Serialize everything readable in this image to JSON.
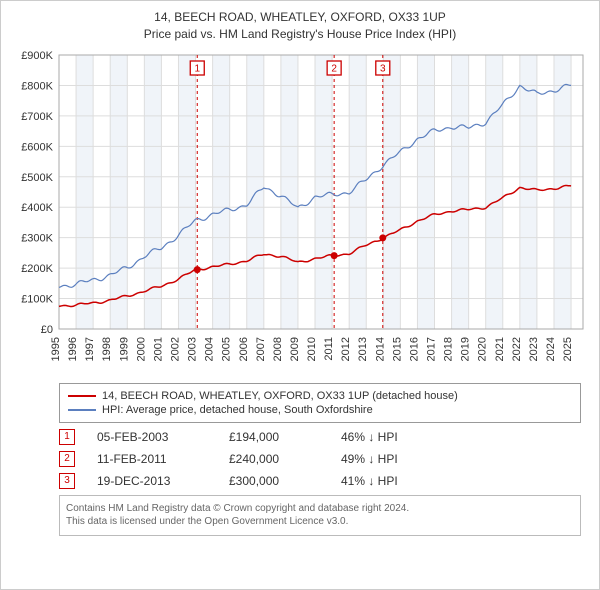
{
  "title_line1": "14, BEECH ROAD, WHEATLEY, OXFORD, OX33 1UP",
  "title_line2": "Price paid vs. HM Land Registry's House Price Index (HPI)",
  "chart": {
    "type": "line",
    "background_color": "#ffffff",
    "plot_bg": "#ffffff",
    "grid_color": "#dddddd",
    "border_color": "#aaaaaa",
    "shaded_band_color": "#f0f4f9",
    "xlim": [
      1995,
      2025.7
    ],
    "ylim": [
      0,
      900000
    ],
    "ytick_step": 100000,
    "yticks": [
      "£0",
      "£100K",
      "£200K",
      "£300K",
      "£400K",
      "£500K",
      "£600K",
      "£700K",
      "£800K",
      "£900K"
    ],
    "xticks": [
      1995,
      1996,
      1997,
      1998,
      1999,
      2000,
      2001,
      2002,
      2003,
      2004,
      2005,
      2006,
      2007,
      2008,
      2009,
      2010,
      2011,
      2012,
      2013,
      2014,
      2015,
      2016,
      2017,
      2018,
      2019,
      2020,
      2021,
      2022,
      2023,
      2024,
      2025
    ],
    "label_fontsize": 11,
    "series": [
      {
        "name": "14, BEECH ROAD, WHEATLEY, OXFORD, OX33 1UP (detached house)",
        "color": "#cc0000",
        "line_width": 1.5,
        "data": [
          [
            1995,
            76000
          ],
          [
            1996,
            79000
          ],
          [
            1997,
            85000
          ],
          [
            1998,
            95000
          ],
          [
            1999,
            108000
          ],
          [
            2000,
            125000
          ],
          [
            2001,
            140000
          ],
          [
            2002,
            165000
          ],
          [
            2003,
            194000
          ],
          [
            2004,
            205000
          ],
          [
            2005,
            212000
          ],
          [
            2006,
            225000
          ],
          [
            2007,
            245000
          ],
          [
            2008,
            240000
          ],
          [
            2009,
            218000
          ],
          [
            2010,
            232000
          ],
          [
            2011,
            240000
          ],
          [
            2012,
            248000
          ],
          [
            2013,
            275000
          ],
          [
            2014,
            300000
          ],
          [
            2015,
            325000
          ],
          [
            2016,
            355000
          ],
          [
            2017,
            375000
          ],
          [
            2018,
            388000
          ],
          [
            2019,
            392000
          ],
          [
            2020,
            400000
          ],
          [
            2021,
            430000
          ],
          [
            2022,
            465000
          ],
          [
            2023,
            455000
          ],
          [
            2024,
            462000
          ],
          [
            2025,
            470000
          ]
        ]
      },
      {
        "name": "HPI: Average price, detached house, South Oxfordshire",
        "color": "#5b7fbf",
        "line_width": 1.2,
        "data": [
          [
            1995,
            140000
          ],
          [
            1996,
            148000
          ],
          [
            1997,
            160000
          ],
          [
            1998,
            178000
          ],
          [
            1999,
            200000
          ],
          [
            2000,
            240000
          ],
          [
            2001,
            265000
          ],
          [
            2002,
            310000
          ],
          [
            2003,
            355000
          ],
          [
            2004,
            378000
          ],
          [
            2005,
            390000
          ],
          [
            2006,
            410000
          ],
          [
            2007,
            465000
          ],
          [
            2008,
            440000
          ],
          [
            2009,
            395000
          ],
          [
            2010,
            435000
          ],
          [
            2011,
            440000
          ],
          [
            2012,
            450000
          ],
          [
            2013,
            490000
          ],
          [
            2014,
            540000
          ],
          [
            2015,
            580000
          ],
          [
            2016,
            625000
          ],
          [
            2017,
            650000
          ],
          [
            2018,
            665000
          ],
          [
            2019,
            660000
          ],
          [
            2020,
            680000
          ],
          [
            2021,
            735000
          ],
          [
            2022,
            800000
          ],
          [
            2023,
            770000
          ],
          [
            2024,
            785000
          ],
          [
            2025,
            800000
          ]
        ]
      }
    ],
    "transactions": [
      {
        "n": "1",
        "x": 2003.1,
        "date": "05-FEB-2003",
        "price": "£194,000",
        "hpi_delta": "46% ↓ HPI"
      },
      {
        "n": "2",
        "x": 2011.12,
        "date": "11-FEB-2011",
        "price": "£240,000",
        "hpi_delta": "49% ↓ HPI"
      },
      {
        "n": "3",
        "x": 2013.97,
        "date": "19-DEC-2013",
        "price": "£300,000",
        "hpi_delta": "41% ↓ HPI"
      }
    ],
    "marker_box": {
      "fill": "#ffffff",
      "stroke": "#cc0000",
      "text_color": "#cc0000",
      "size": 14
    },
    "marker_dash_color": "#cc0000",
    "marker_dot_color": "#cc0000"
  },
  "legend": {
    "border_color": "#999999",
    "items": [
      {
        "color": "#cc0000",
        "label": "14, BEECH ROAD, WHEATLEY, OXFORD, OX33 1UP (detached house)"
      },
      {
        "color": "#5b7fbf",
        "label": "HPI: Average price, detached house, South Oxfordshire"
      }
    ]
  },
  "footer_line1": "Contains HM Land Registry data © Crown copyright and database right 2024.",
  "footer_line2": "This data is licensed under the Open Government Licence v3.0.",
  "transactions_table": [
    {
      "n": "1",
      "date": "05-FEB-2003",
      "price": "£194,000",
      "hpi": "46% ↓ HPI"
    },
    {
      "n": "2",
      "date": "11-FEB-2011",
      "price": "£240,000",
      "hpi": "49% ↓ HPI"
    },
    {
      "n": "3",
      "date": "19-DEC-2013",
      "price": "£300,000",
      "hpi": "41% ↓ HPI"
    }
  ]
}
